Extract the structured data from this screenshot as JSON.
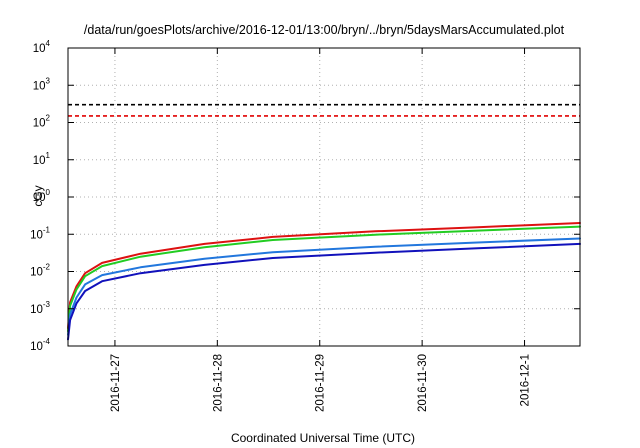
{
  "chart_data": {
    "type": "line",
    "title": "/data/run/goesPlots/archive/2016-12-01/13:00/bryn/../bryn/5daysMarsAccumulated.plot",
    "xlabel": "Coordinated Universal Time (UTC)",
    "ylabel": "cGy",
    "x_axis": {
      "type": "date",
      "range": [
        "2016-11-26T13:00",
        "2016-12-01T13:00"
      ],
      "tick_labels": [
        "2016-11-27",
        "2016-11-28",
        "2016-11-29",
        "2016-11-30",
        "2016-12-1"
      ]
    },
    "y_axis": {
      "scale": "log",
      "range": [
        0.0001,
        10000
      ],
      "tick_labels": [
        {
          "base": "10",
          "exp": "-4"
        },
        {
          "base": "10",
          "exp": "-3"
        },
        {
          "base": "10",
          "exp": "-2"
        },
        {
          "base": "10",
          "exp": "-1"
        },
        {
          "base": "10",
          "exp": "0"
        },
        {
          "base": "10",
          "exp": "1"
        },
        {
          "base": "10",
          "exp": "2"
        },
        {
          "base": "10",
          "exp": "3"
        },
        {
          "base": "10",
          "exp": "4"
        }
      ]
    },
    "grid": true,
    "reference_lines": [
      {
        "y": 300,
        "color": "#000000",
        "style": "dashed"
      },
      {
        "y": 150,
        "color": "#e00000",
        "style": "dashed"
      }
    ],
    "series": [
      {
        "color": "#dd1111",
        "x": [
          "2016-11-26T13:00",
          "2016-11-26T13:30",
          "2016-11-26T15:00",
          "2016-11-26T17:00",
          "2016-11-26T21:00",
          "2016-11-27T06:00",
          "2016-11-27T21:00",
          "2016-11-28T13:00",
          "2016-11-29T13:00",
          "2016-11-30T13:00",
          "2016-12-01T13:00"
        ],
        "values": [
          0.0003,
          0.0015,
          0.004,
          0.009,
          0.017,
          0.03,
          0.055,
          0.085,
          0.12,
          0.155,
          0.2
        ]
      },
      {
        "color": "#22cc22",
        "x": [
          "2016-11-26T13:00",
          "2016-11-26T13:30",
          "2016-11-26T15:00",
          "2016-11-26T17:00",
          "2016-11-26T21:00",
          "2016-11-27T06:00",
          "2016-11-27T21:00",
          "2016-11-28T13:00",
          "2016-11-29T13:00",
          "2016-11-30T13:00",
          "2016-12-01T13:00"
        ],
        "values": [
          0.00025,
          0.0012,
          0.0033,
          0.0075,
          0.014,
          0.025,
          0.045,
          0.07,
          0.097,
          0.125,
          0.16
        ]
      },
      {
        "color": "#2277dd",
        "x": [
          "2016-11-26T13:00",
          "2016-11-26T13:30",
          "2016-11-26T15:00",
          "2016-11-26T17:00",
          "2016-11-26T21:00",
          "2016-11-27T06:00",
          "2016-11-27T21:00",
          "2016-11-28T13:00",
          "2016-11-29T13:00",
          "2016-11-30T13:00",
          "2016-12-01T13:00"
        ],
        "values": [
          0.0002,
          0.0007,
          0.002,
          0.0045,
          0.008,
          0.013,
          0.022,
          0.033,
          0.046,
          0.06,
          0.077
        ]
      },
      {
        "color": "#1111bb",
        "x": [
          "2016-11-26T13:00",
          "2016-11-26T13:30",
          "2016-11-26T15:00",
          "2016-11-26T17:00",
          "2016-11-26T21:00",
          "2016-11-27T06:00",
          "2016-11-27T21:00",
          "2016-11-28T13:00",
          "2016-11-29T13:00",
          "2016-11-30T13:00",
          "2016-12-01T13:00"
        ],
        "values": [
          0.00015,
          0.0005,
          0.0014,
          0.003,
          0.0055,
          0.009,
          0.015,
          0.023,
          0.032,
          0.042,
          0.055
        ]
      }
    ]
  }
}
